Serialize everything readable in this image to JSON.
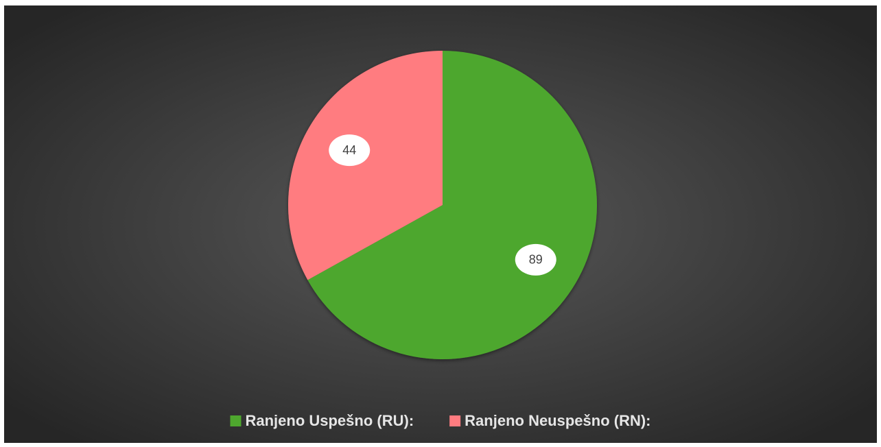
{
  "chart_data": {
    "type": "pie",
    "categories": [
      "Ranjeno Uspešno (RU):",
      "Ranjeno Neuspešno (RN):"
    ],
    "values": [
      89,
      44
    ],
    "colors": [
      "#4ea72e",
      "#ff7c80"
    ],
    "legend": "bottom"
  }
}
